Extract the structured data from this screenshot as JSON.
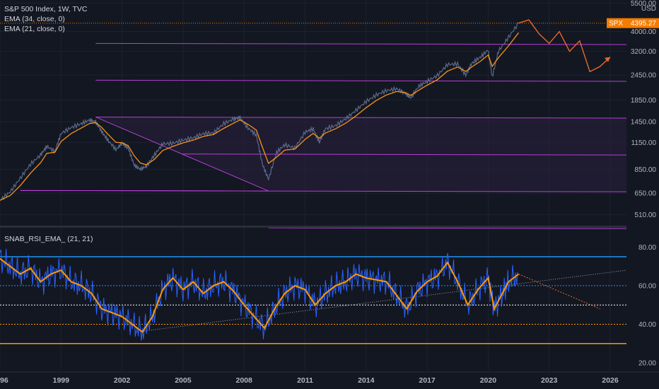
{
  "header": {
    "symbol_title": "S&P 500 Index, 1W, TVC",
    "indicators": [
      "EMA (34, close, 0)",
      "EMA (21, close, 0)"
    ],
    "currency": "USD",
    "price_tag_symbol": "SPX",
    "price_tag_value": "4395.27"
  },
  "sub_panel": {
    "title": "SNAB_RSI_EMA_ (21, 21)"
  },
  "colors": {
    "background": "#131722",
    "price_line": "#5a6a8a",
    "ema": "#f7931a",
    "channel": "#b63fd6",
    "channel_fill": "#2a1f3d",
    "rsi": "#2962ff",
    "rsi_ema": "#ff9800",
    "upper_band": "#2196f3",
    "lower_band": "#ff9800",
    "price_tag": "#f57c00"
  },
  "chart_data": [
    {
      "type": "line",
      "panel": "price",
      "scale": "log",
      "xlim": [
        1996.0,
        2026.8
      ],
      "ylim": [
        455,
        5700
      ],
      "x_ticks": [
        "96",
        "1999",
        "2002",
        "2005",
        "2008",
        "2011",
        "2014",
        "2017",
        "2020",
        "2023",
        "2026"
      ],
      "y_ticks": [
        "5500.00",
        "4000.00",
        "3200.00",
        "2450.00",
        "1850.00",
        "1450.00",
        "1150.00",
        "850.00",
        "650.00",
        "510.00"
      ],
      "last_value": 4395.27,
      "series": [
        {
          "x": [
            1996.0,
            1996.5,
            1997.0,
            1997.5,
            1998.0,
            1998.3,
            1998.7,
            1999.0,
            1999.5,
            2000.0,
            2000.4,
            2000.7,
            2001.0,
            2001.3,
            2001.7,
            2002.0,
            2002.3,
            2002.6,
            2002.9,
            2003.2,
            2003.6,
            2004.0,
            2004.5,
            2005.0,
            2005.5,
            2006.0,
            2006.5,
            2007.0,
            2007.5,
            2007.8,
            2008.2,
            2008.6,
            2008.9,
            2009.2,
            2009.6,
            2010.0,
            2010.5,
            2011.0,
            2011.4,
            2011.7,
            2012.0,
            2012.5,
            2013.0,
            2013.5,
            2014.0,
            2014.5,
            2015.0,
            2015.5,
            2015.9,
            2016.2,
            2016.6,
            2017.0,
            2017.5,
            2018.0,
            2018.5,
            2018.9,
            2019.2,
            2019.6,
            2020.0,
            2020.2,
            2020.5,
            2021.0,
            2021.5
          ],
          "y": [
            600,
            660,
            770,
            900,
            1000,
            1100,
            1040,
            1270,
            1360,
            1420,
            1480,
            1450,
            1300,
            1180,
            1060,
            1140,
            1080,
            890,
            850,
            880,
            1000,
            1130,
            1140,
            1180,
            1210,
            1270,
            1280,
            1420,
            1500,
            1520,
            1350,
            1250,
            900,
            760,
            1030,
            1120,
            1080,
            1290,
            1340,
            1150,
            1340,
            1390,
            1500,
            1650,
            1820,
            1960,
            2060,
            2100,
            2000,
            1900,
            2170,
            2280,
            2440,
            2760,
            2780,
            2450,
            2800,
            2990,
            3250,
            2400,
            3200,
            3750,
            4395
          ]
        },
        {
          "name": "",
          "projection": true,
          "x": [
            2021.5,
            2022.0,
            2022.5,
            2023.0,
            2023.5,
            2024.0,
            2024.5,
            2025.0,
            2025.5,
            2026.0
          ],
          "y": [
            4395,
            4560,
            3900,
            3500,
            4000,
            3200,
            3600,
            2550,
            2700,
            3000
          ]
        }
      ],
      "channel": {
        "anchor_points": [
          {
            "x": 2000.7,
            "y": 1530
          },
          {
            "x": 2009.2,
            "y": 666
          },
          {
            "x": 1997.0,
            "y": 670
          }
        ]
      }
    },
    {
      "type": "line",
      "panel": "oscillator",
      "xlim": [
        1996.0,
        2026.8
      ],
      "ylim": [
        16,
        90
      ],
      "y_ticks": [
        "80.00",
        "60.00",
        "40.00",
        "20.00"
      ],
      "levels": [
        75,
        60,
        50,
        40,
        30
      ],
      "series": [
        {
          "name": "",
          "x": [
            1996.0,
            1996.5,
            1997.0,
            1997.5,
            1998.0,
            1998.5,
            1999.0,
            1999.5,
            2000.0,
            2000.5,
            2001.0,
            2001.5,
            2002.0,
            2002.5,
            2003.0,
            2003.5,
            2004.0,
            2004.5,
            2005.0,
            2005.5,
            2006.0,
            2006.5,
            2007.0,
            2007.5,
            2008.0,
            2008.5,
            2009.0,
            2009.5,
            2010.0,
            2010.5,
            2011.0,
            2011.5,
            2012.0,
            2012.5,
            2013.0,
            2013.5,
            2014.0,
            2014.5,
            2015.0,
            2015.5,
            2016.0,
            2016.5,
            2017.0,
            2017.5,
            2018.0,
            2018.5,
            2019.0,
            2019.5,
            2020.0,
            2020.3,
            2020.7,
            2021.0,
            2021.5
          ],
          "y": [
            74,
            70,
            66,
            69,
            62,
            66,
            68,
            62,
            60,
            56,
            48,
            46,
            44,
            40,
            36,
            44,
            58,
            64,
            58,
            62,
            56,
            60,
            62,
            57,
            50,
            44,
            38,
            48,
            56,
            60,
            58,
            50,
            56,
            60,
            62,
            66,
            64,
            63,
            62,
            55,
            48,
            57,
            62,
            65,
            72,
            62,
            50,
            58,
            64,
            48,
            56,
            62,
            66
          ]
        }
      ],
      "trendline": {
        "x": [
          2002.7,
          2026.8
        ],
        "y": [
          36,
          68
        ]
      },
      "projection": {
        "x": [
          2021.5,
          2025.5
        ],
        "y": [
          66,
          48
        ]
      }
    }
  ]
}
